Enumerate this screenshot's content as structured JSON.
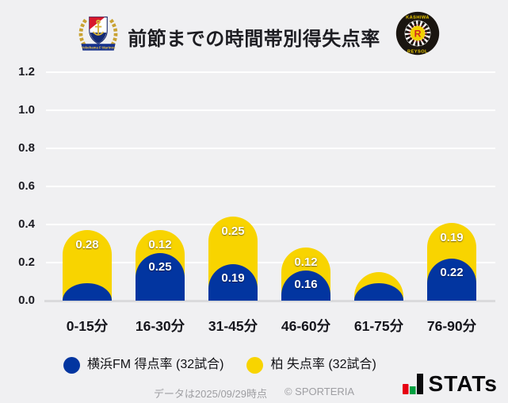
{
  "header": {
    "title": "前節までの時間帯別得失点率",
    "home_team": "横浜F・マリノス",
    "home_logo_text": "Yokohama F·Marinos",
    "away_team": "柏レイソル",
    "away_logo_text_top": "KASHIWA",
    "away_logo_text_bottom": "REYSOL",
    "away_logo_letter": "R"
  },
  "chart_data": {
    "type": "bar",
    "stacked": true,
    "title": "前節までの時間帯別得失点率",
    "categories": [
      "0-15分",
      "16-30分",
      "31-45分",
      "46-60分",
      "61-75分",
      "76-90分"
    ],
    "series": [
      {
        "name": "横浜FM 得点率 (32試合)",
        "color": "#0235a0",
        "values": [
          0.09,
          0.25,
          0.19,
          0.16,
          0.09,
          0.22
        ],
        "data_labels": [
          "",
          "0.25",
          "0.19",
          "0.16",
          "",
          "0.22"
        ]
      },
      {
        "name": "柏 失点率 (32試合)",
        "color": "#f8d400",
        "values": [
          0.28,
          0.12,
          0.25,
          0.12,
          0.06,
          0.19
        ],
        "data_labels": [
          "0.28",
          "0.12",
          "0.25",
          "0.12",
          "",
          "0.19"
        ]
      }
    ],
    "ylim": [
      0,
      1.2
    ],
    "yticks": [
      "0.0",
      "0.2",
      "0.4",
      "0.6",
      "0.8",
      "1.0",
      "1.2"
    ],
    "grid": "horizontal",
    "legend_position": "bottom"
  },
  "legend": {
    "items": [
      {
        "label": "横浜FM 得点率 (32試合)",
        "color": "#0235a0"
      },
      {
        "label": "柏 失点率 (32試合)",
        "color": "#f8d400"
      }
    ]
  },
  "footer": {
    "note": "データは2025/09/29時点",
    "copyright": "© SPORTERIA",
    "brand": "STATs"
  }
}
